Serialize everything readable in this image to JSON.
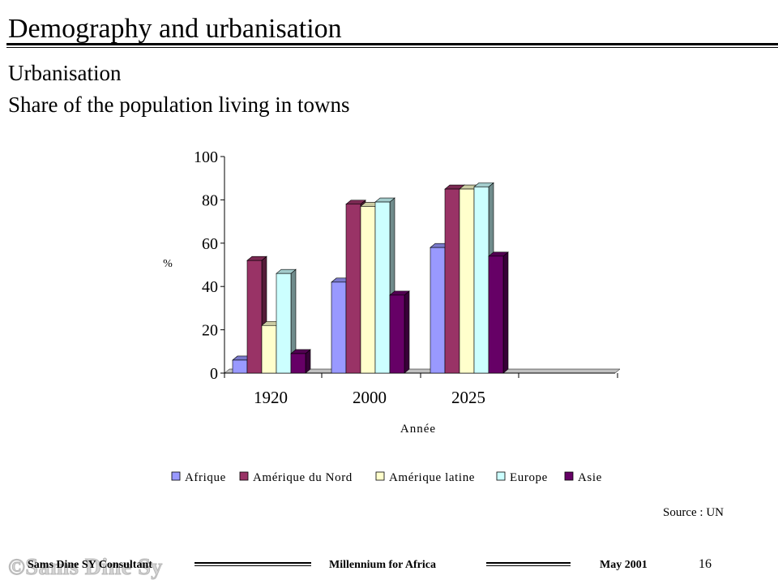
{
  "slide": {
    "title": "Demography and urbanisation",
    "heading_line1": "Urbanisation",
    "heading_line2": "Share of the population living in towns",
    "source": "Source : UN"
  },
  "footer": {
    "watermark": "©Sams Dine Sy",
    "left": "Sams Dine SY Consultant",
    "center": "Millennium  for Africa",
    "right": "May 2001",
    "page_number": "16"
  },
  "chart_data": {
    "type": "bar",
    "title": "",
    "xlabel": "Année",
    "ylabel": "%",
    "ylim": [
      0,
      100
    ],
    "yticks": [
      "0",
      "20",
      "40",
      "60",
      "80",
      "100"
    ],
    "categories": [
      "1920",
      "2000",
      "2025"
    ],
    "legend_position": "bottom",
    "three_d": true,
    "series": [
      {
        "name": "Afrique",
        "color": "#9999ff",
        "values": [
          6,
          42,
          58
        ]
      },
      {
        "name": "Amérique du Nord",
        "color": "#993366",
        "values": [
          52,
          78,
          85
        ]
      },
      {
        "name": "Amérique latine",
        "color": "#ffffcc",
        "values": [
          22,
          77,
          85
        ]
      },
      {
        "name": "Europe",
        "color": "#ccffff",
        "values": [
          46,
          79,
          86
        ]
      },
      {
        "name": "Asie",
        "color": "#660066",
        "values": [
          9,
          36,
          54
        ]
      }
    ]
  }
}
